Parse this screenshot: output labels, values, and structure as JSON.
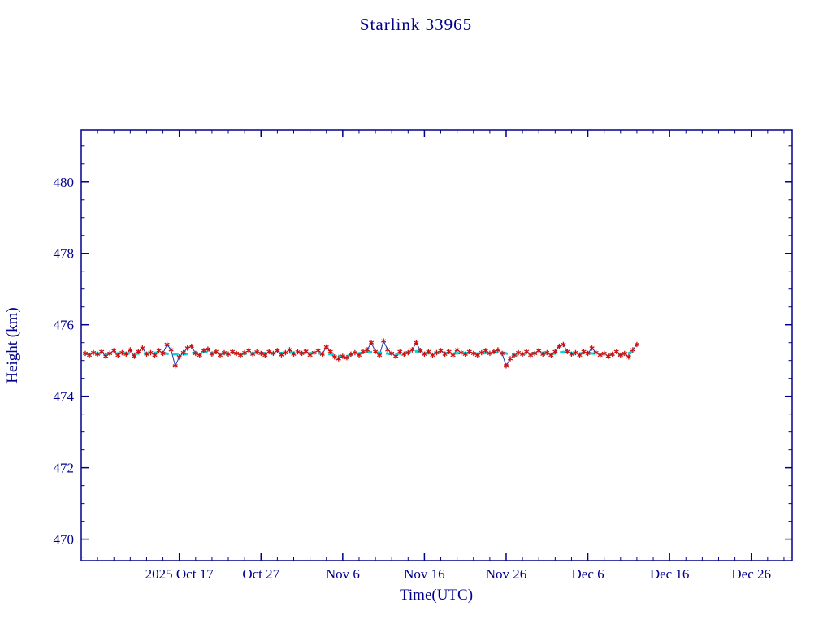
{
  "colors": {
    "background": "#ffffff",
    "axis": "#00008b",
    "observed_line": "#2233aa",
    "observed_marker": "#cc1111",
    "mean_line": "#00d8d8"
  },
  "chart_data": {
    "type": "line",
    "title": "Starlink 33965",
    "xlabel": "Time(UTC)",
    "ylabel": "Height (km)",
    "ylim": [
      469.4,
      481.45
    ],
    "y_ticks": [
      470,
      472,
      474,
      476,
      478,
      480
    ],
    "y_minor_step": 0.5,
    "xlim_days": [
      0,
      87
    ],
    "x_minor_step": 2,
    "x_ticks": [
      {
        "day": 12,
        "label": "2025 Oct 17"
      },
      {
        "day": 22,
        "label": "Oct 27"
      },
      {
        "day": 32,
        "label": "Nov 6"
      },
      {
        "day": 42,
        "label": "Nov 16"
      },
      {
        "day": 52,
        "label": "Nov 26"
      },
      {
        "day": 62,
        "label": "Dec 6"
      },
      {
        "day": 72,
        "label": "Dec 16"
      },
      {
        "day": 82,
        "label": "Dec 26"
      }
    ],
    "grid": false,
    "legend": "none",
    "series": [
      {
        "name": "observed-height",
        "marker": "asterisk",
        "marker_color": "#cc1111",
        "line_color": "#2233aa",
        "line_width": 1,
        "t0": 0.5,
        "dt": 0.5,
        "heights": [
          475.2,
          475.15,
          475.22,
          475.18,
          475.25,
          475.12,
          475.2,
          475.28,
          475.15,
          475.22,
          475.18,
          475.3,
          475.12,
          475.25,
          475.35,
          475.18,
          475.22,
          475.15,
          475.28,
          475.2,
          475.45,
          475.3,
          474.85,
          475.1,
          475.22,
          475.35,
          475.4,
          475.2,
          475.15,
          475.28,
          475.32,
          475.18,
          475.25,
          475.15,
          475.22,
          475.18,
          475.25,
          475.2,
          475.15,
          475.22,
          475.28,
          475.18,
          475.24,
          475.2,
          475.15,
          475.25,
          475.2,
          475.28,
          475.16,
          475.22,
          475.3,
          475.18,
          475.24,
          475.2,
          475.26,
          475.15,
          475.22,
          475.28,
          475.18,
          475.38,
          475.25,
          475.1,
          475.05,
          475.12,
          475.08,
          475.18,
          475.22,
          475.15,
          475.25,
          475.3,
          475.5,
          475.25,
          475.15,
          475.55,
          475.3,
          475.2,
          475.12,
          475.25,
          475.18,
          475.22,
          475.3,
          475.5,
          475.28,
          475.18,
          475.25,
          475.15,
          475.22,
          475.28,
          475.18,
          475.25,
          475.15,
          475.3,
          475.22,
          475.18,
          475.25,
          475.2,
          475.15,
          475.22,
          475.28,
          475.2,
          475.25,
          475.3,
          475.2,
          474.85,
          475.05,
          475.15,
          475.22,
          475.18,
          475.25,
          475.15,
          475.2,
          475.28,
          475.18,
          475.22,
          475.15,
          475.25,
          475.4,
          475.45,
          475.25,
          475.18,
          475.22,
          475.15,
          475.25,
          475.2,
          475.35,
          475.22,
          475.15,
          475.2,
          475.12,
          475.18,
          475.25,
          475.15,
          475.2,
          475.1,
          475.3,
          475.45
        ]
      },
      {
        "name": "mean-height",
        "marker": "none",
        "line_color": "#00d8d8",
        "line_width": 3,
        "dash": "7 5",
        "t0": 0.5,
        "dt": 1.5,
        "heights": [
          475.18,
          475.2,
          475.18,
          475.21,
          475.19,
          475.2,
          475.22,
          475.18,
          475.17,
          475.22,
          475.24,
          475.19,
          475.21,
          475.18,
          475.22,
          475.2,
          475.21,
          475.22,
          475.21,
          475.2,
          475.18,
          475.1,
          475.18,
          475.24,
          475.22,
          475.18,
          475.2,
          475.26,
          475.2,
          475.22,
          475.2,
          475.21,
          475.19,
          475.22,
          475.23,
          475.14,
          475.2,
          475.22,
          475.18,
          475.24,
          475.19,
          475.21,
          475.18,
          475.16,
          475.17,
          475.28
        ]
      }
    ]
  }
}
